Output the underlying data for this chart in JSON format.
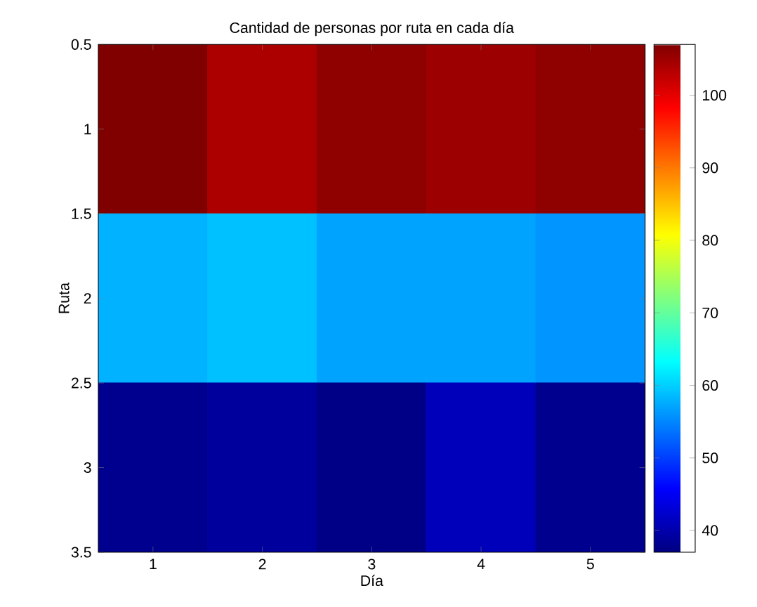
{
  "chart_data": {
    "type": "heatmap",
    "title": "Cantidad de personas por ruta en cada día",
    "xlabel": "Día",
    "ylabel": "Ruta",
    "categories": [
      "1",
      "2",
      "3",
      "4",
      "5"
    ],
    "cells": [
      [
        107,
        104,
        106,
        105,
        106
      ],
      [
        58,
        59,
        57,
        57,
        56
      ],
      [
        38,
        39,
        37.5,
        41,
        38
      ]
    ],
    "ylim": [
      3.5,
      0.5
    ],
    "yticks": [
      0.5,
      1,
      1.5,
      2,
      2.5,
      3,
      3.5
    ],
    "clim": [
      37,
      107
    ],
    "cticks": [
      40,
      50,
      60,
      70,
      80,
      90,
      100
    ]
  }
}
